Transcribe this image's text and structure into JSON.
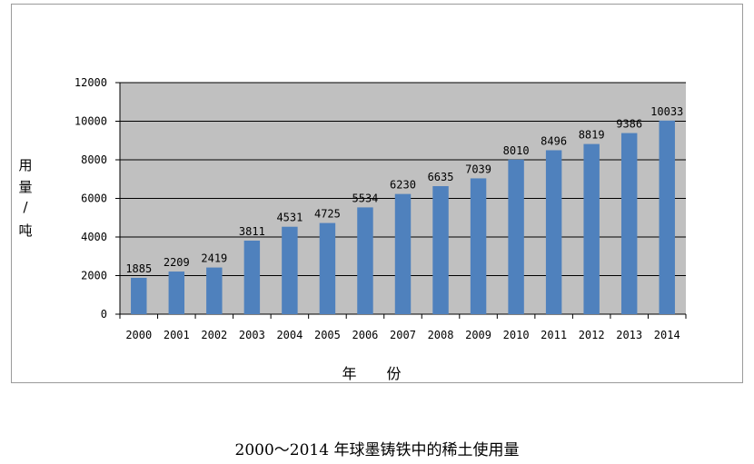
{
  "caption": "2000～2014 年球墨铸铁中的稀土使用量",
  "chart_data": {
    "type": "bar",
    "title": "",
    "xlabel": "年 份",
    "ylabel_chars": [
      "用",
      "量",
      "/",
      "吨"
    ],
    "ylabel": "用量/吨",
    "categories": [
      "2000",
      "2001",
      "2002",
      "2003",
      "2004",
      "2005",
      "2006",
      "2007",
      "2008",
      "2009",
      "2010",
      "2011",
      "2012",
      "2013",
      "2014"
    ],
    "values": [
      1885,
      2209,
      2419,
      3811,
      4531,
      4725,
      5534,
      6230,
      6635,
      7039,
      8010,
      8496,
      8819,
      9386,
      10033
    ],
    "ylim": [
      0,
      12000
    ],
    "yticks": [
      0,
      2000,
      4000,
      6000,
      8000,
      10000,
      12000
    ],
    "grid": true,
    "legend": "none",
    "colors": {
      "bar": "#4f81bd",
      "plot_bg": "#c0c0c0",
      "grid": "#000000"
    }
  }
}
